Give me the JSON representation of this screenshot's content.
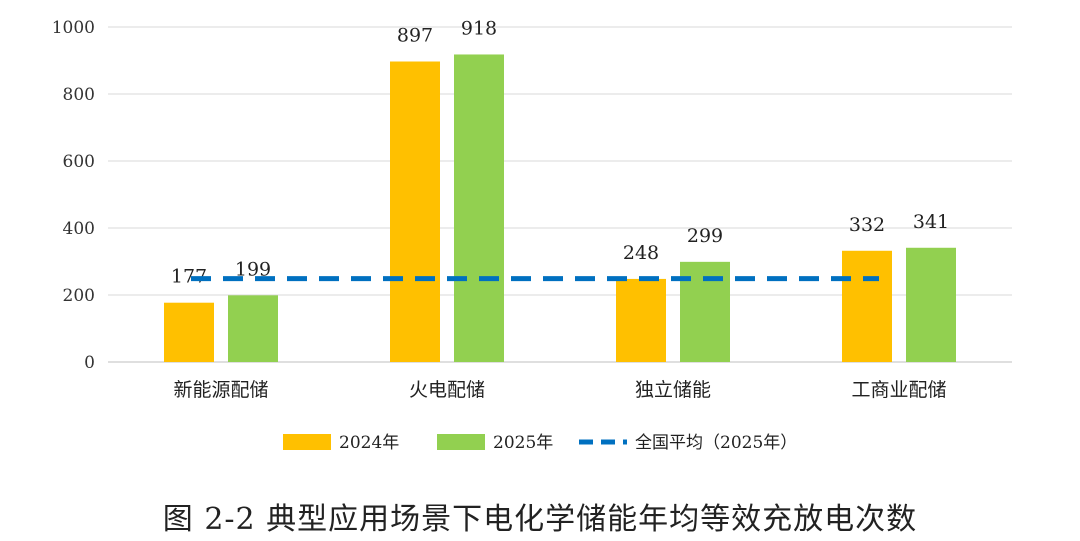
{
  "chart_data": {
    "type": "bar",
    "title": "图 2-2 典型应用场景下电化学储能年均等效充放电次数",
    "categories": [
      "新能源配储",
      "火电配储",
      "独立储能",
      "工商业配储"
    ],
    "series": [
      {
        "name": "2024年",
        "color": "#FFC000",
        "values": [
          177,
          897,
          248,
          332
        ]
      },
      {
        "name": "2025年",
        "color": "#92D050",
        "values": [
          199,
          918,
          299,
          341
        ]
      }
    ],
    "reference_line": {
      "name": "全国平均（2025年）",
      "value": 249,
      "color": "#0070C0",
      "style": "dashed"
    },
    "y_ticks": [
      0,
      200,
      400,
      600,
      800,
      1000
    ],
    "ylim": [
      0,
      1000
    ],
    "xlabel": "",
    "ylabel": "",
    "grid": true,
    "legend_position": "bottom"
  }
}
